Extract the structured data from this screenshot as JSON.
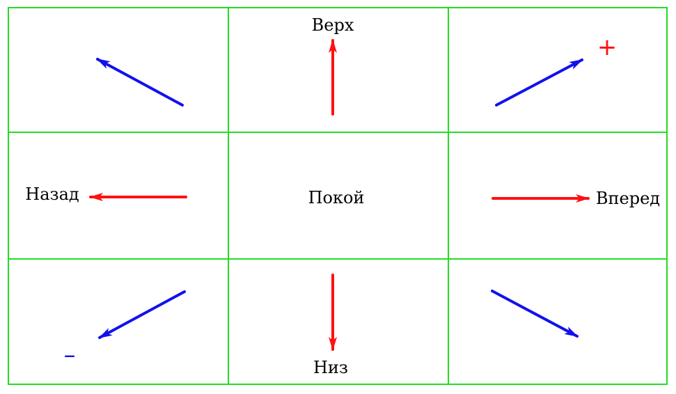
{
  "colors": {
    "grid": "#22dd22",
    "primary_arrow": "#ff1111",
    "diagonal_arrow": "#1111ee",
    "text": "#000000"
  },
  "labels": {
    "up": "Верх",
    "back": "Назад",
    "rest": "Покой",
    "forward": "Вперед",
    "down": "Низ",
    "plus": "+",
    "minus": "–"
  }
}
